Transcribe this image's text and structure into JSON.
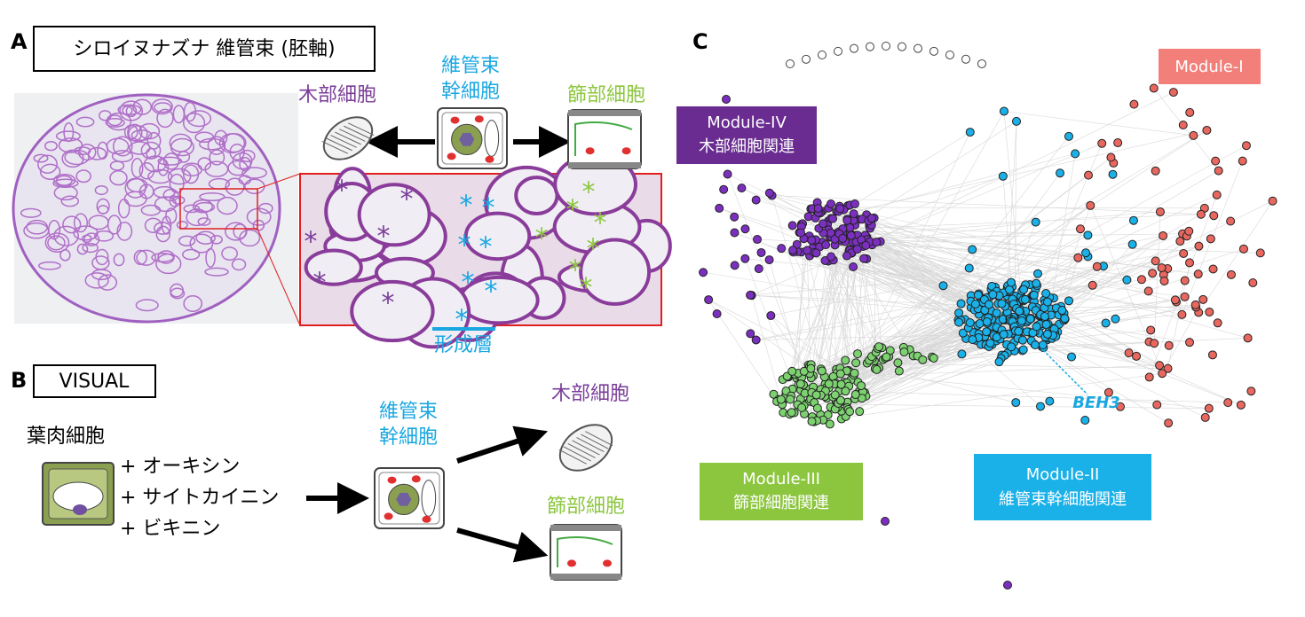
{
  "panel_a": {
    "label": "A",
    "title": "シロイヌナズナ 維管束 (胚軸)",
    "stem_cell": [
      "維管束",
      "幹細胞"
    ],
    "xylem": "木部細胞",
    "phloem": "篩部細胞",
    "marker": "*",
    "cambium": "形成層"
  },
  "panel_b": {
    "label": "B",
    "method": "VISUAL",
    "mesophyll": "葉肉細胞",
    "treatments": [
      "+ オーキシン",
      "+ サイトカイニン",
      "+ ビキニン"
    ],
    "stem_cell": [
      "維管束",
      "幹細胞"
    ],
    "xylem": "木部細胞",
    "phloem": "篩部細胞"
  },
  "panel_c": {
    "label": "C",
    "modules": [
      {
        "name": "Module-I"
      },
      {
        "name": "Module-IV",
        "desc": "木部細胞関連"
      },
      {
        "name": "Module-III",
        "desc": "篩部細胞関連"
      },
      {
        "name": "Module-II",
        "desc": "維管束幹細胞関連"
      }
    ],
    "gene": "BEH3"
  }
}
